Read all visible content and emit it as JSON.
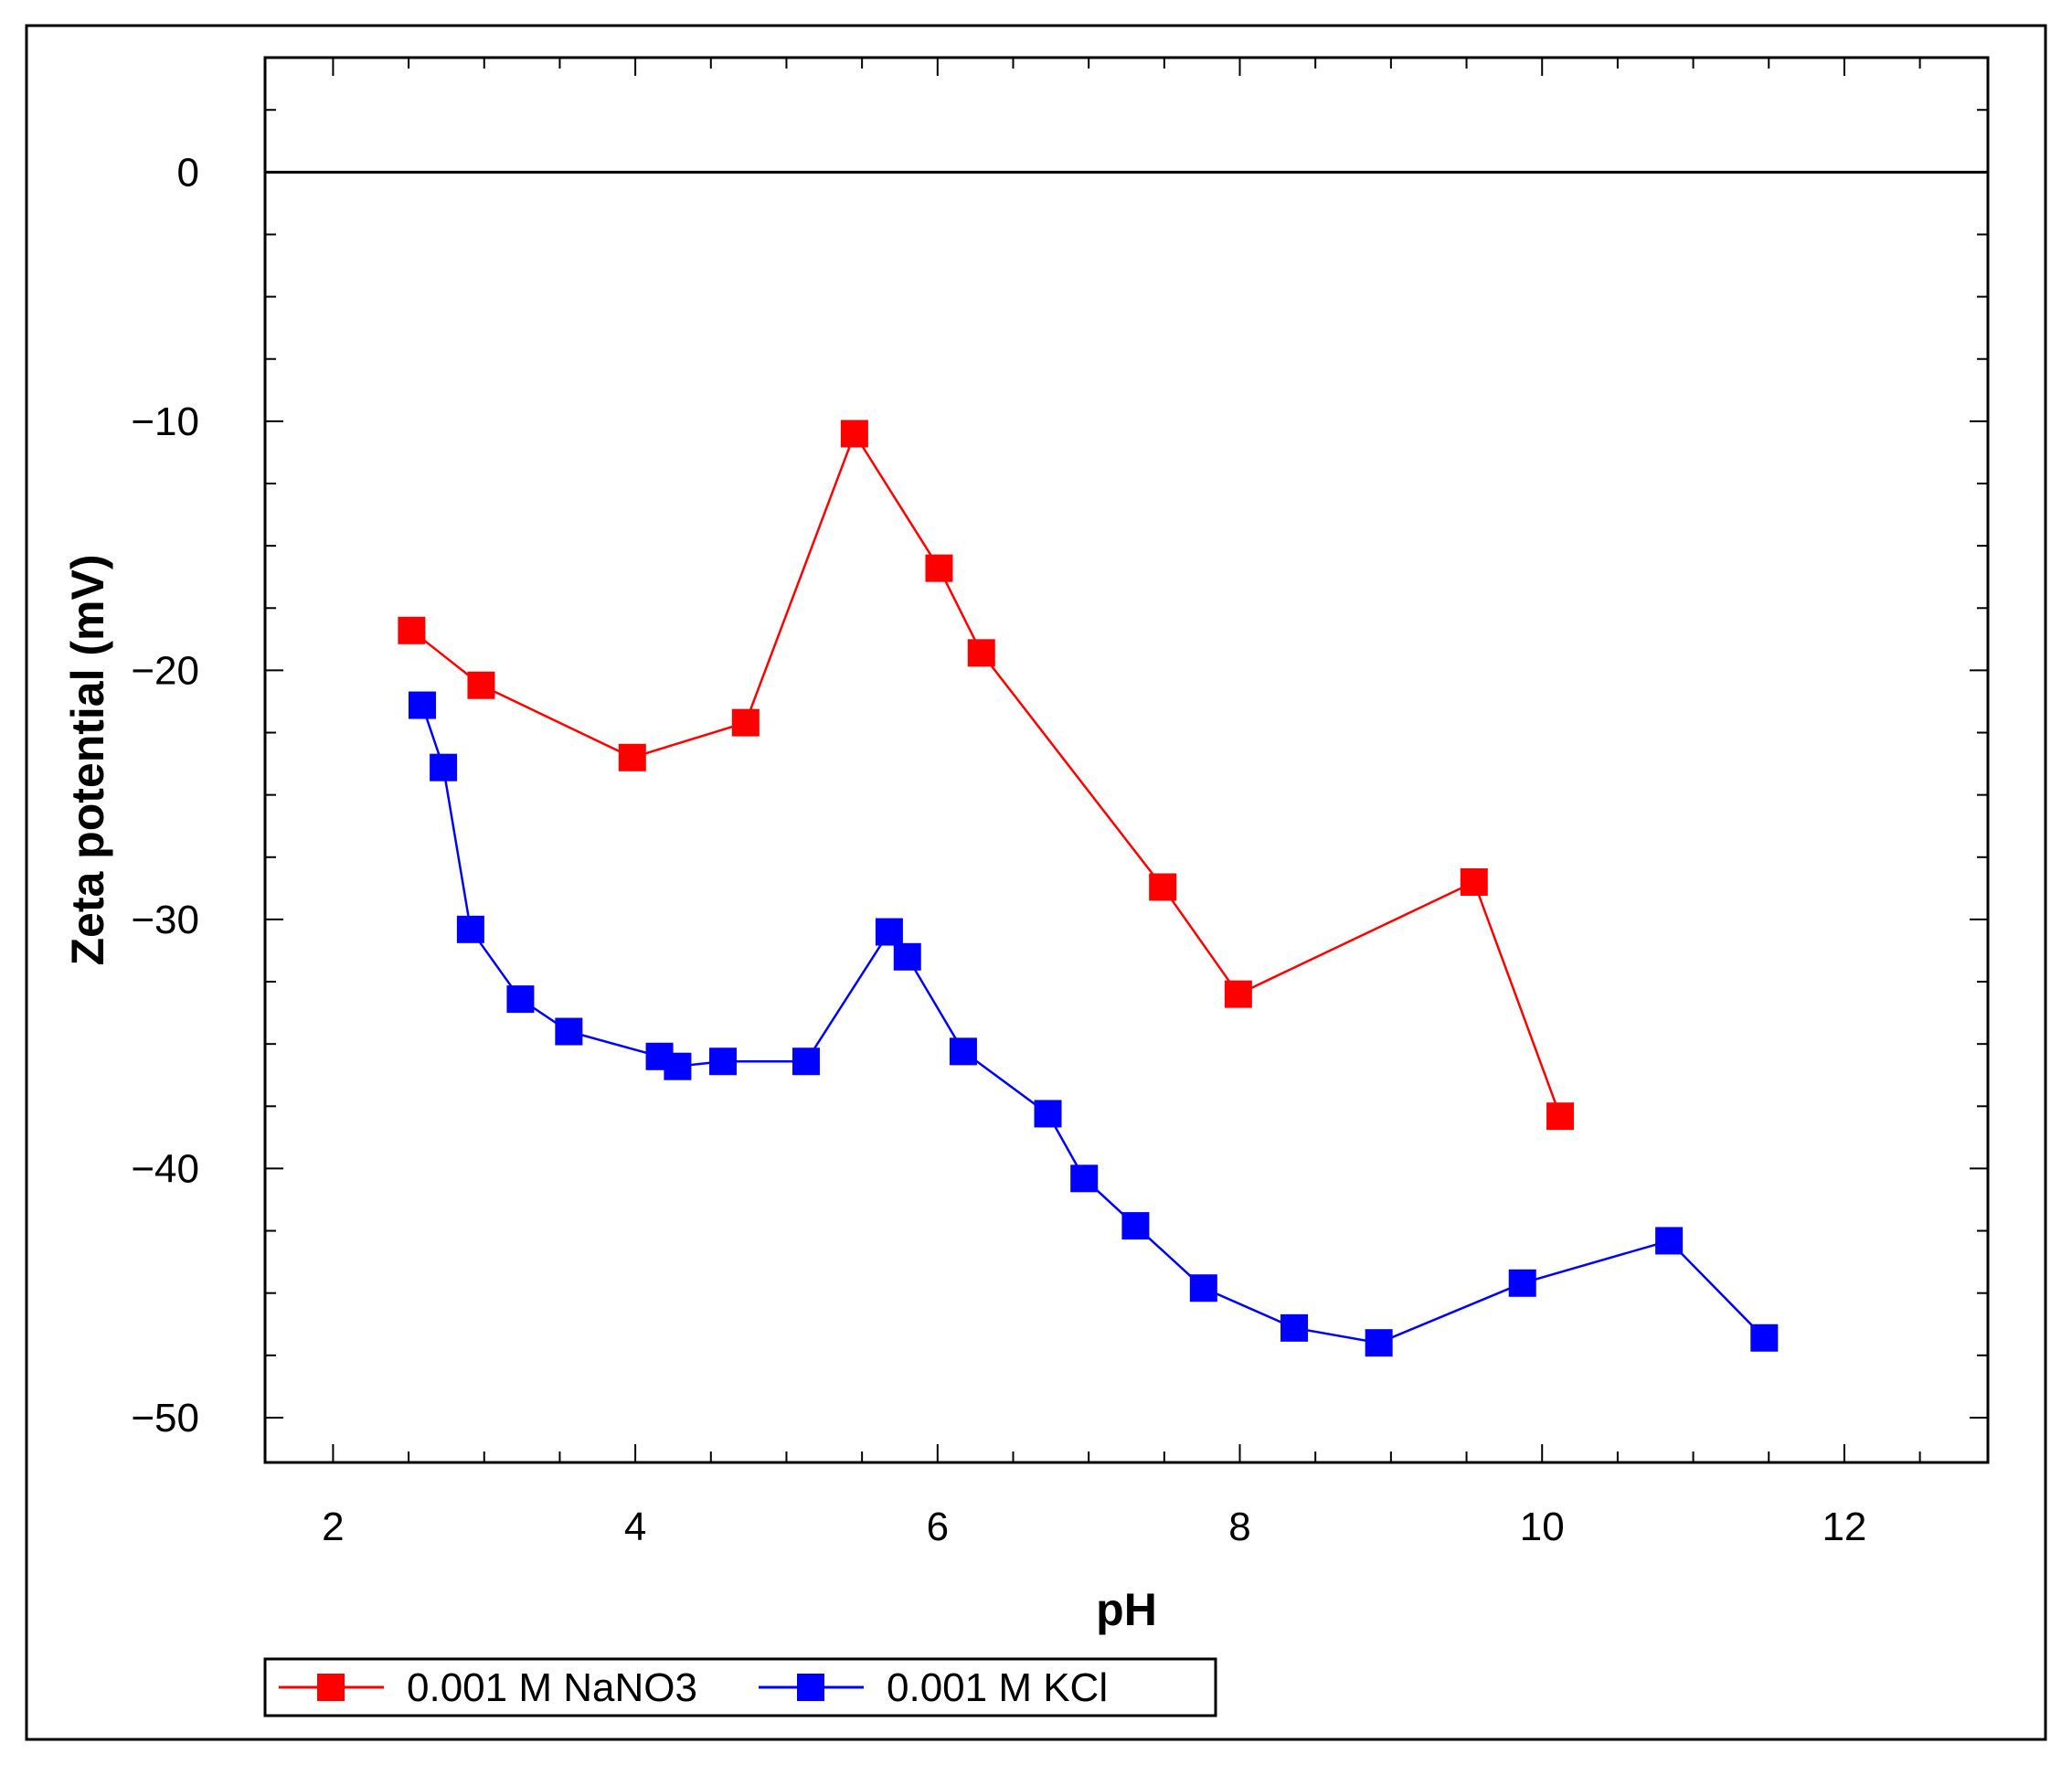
{
  "chart_data": {
    "type": "line",
    "title": "",
    "xlabel": "pH",
    "ylabel": "Zeta potential (mV)",
    "xlim": [
      1.55,
      12.95
    ],
    "ylim": [
      -51.8,
      4.6
    ],
    "x_ticks": [
      2,
      4,
      6,
      8,
      10,
      12
    ],
    "y_ticks": [
      0,
      -10,
      -20,
      -30,
      -40,
      -50
    ],
    "zero_line": true,
    "grid": false,
    "legend_position": "bottom-left",
    "series": [
      {
        "name": "0.001 M NaNO3",
        "color": "#ff0000",
        "marker": "square",
        "x": [
          2.52,
          2.98,
          3.98,
          4.73,
          5.45,
          6.01,
          6.29,
          7.49,
          7.99,
          9.55,
          10.12
        ],
        "y": [
          -18.4,
          -20.6,
          -23.5,
          -22.1,
          -10.5,
          -15.9,
          -19.3,
          -28.7,
          -33.0,
          -28.5,
          -37.9
        ]
      },
      {
        "name": "0.001 M KCl",
        "color": "#0000ff",
        "marker": "square",
        "x": [
          2.59,
          2.73,
          2.91,
          3.24,
          3.56,
          4.16,
          4.28,
          4.58,
          5.13,
          5.68,
          5.8,
          6.17,
          6.73,
          6.97,
          7.31,
          7.76,
          8.36,
          8.92,
          9.87,
          10.84,
          11.47
        ],
        "y": [
          -21.4,
          -23.9,
          -30.4,
          -33.2,
          -34.5,
          -35.5,
          -35.9,
          -35.7,
          -35.7,
          -30.5,
          -31.5,
          -35.3,
          -37.8,
          -40.4,
          -42.3,
          -44.8,
          -46.4,
          -47.0,
          -44.6,
          -42.9,
          -46.8
        ]
      }
    ]
  }
}
